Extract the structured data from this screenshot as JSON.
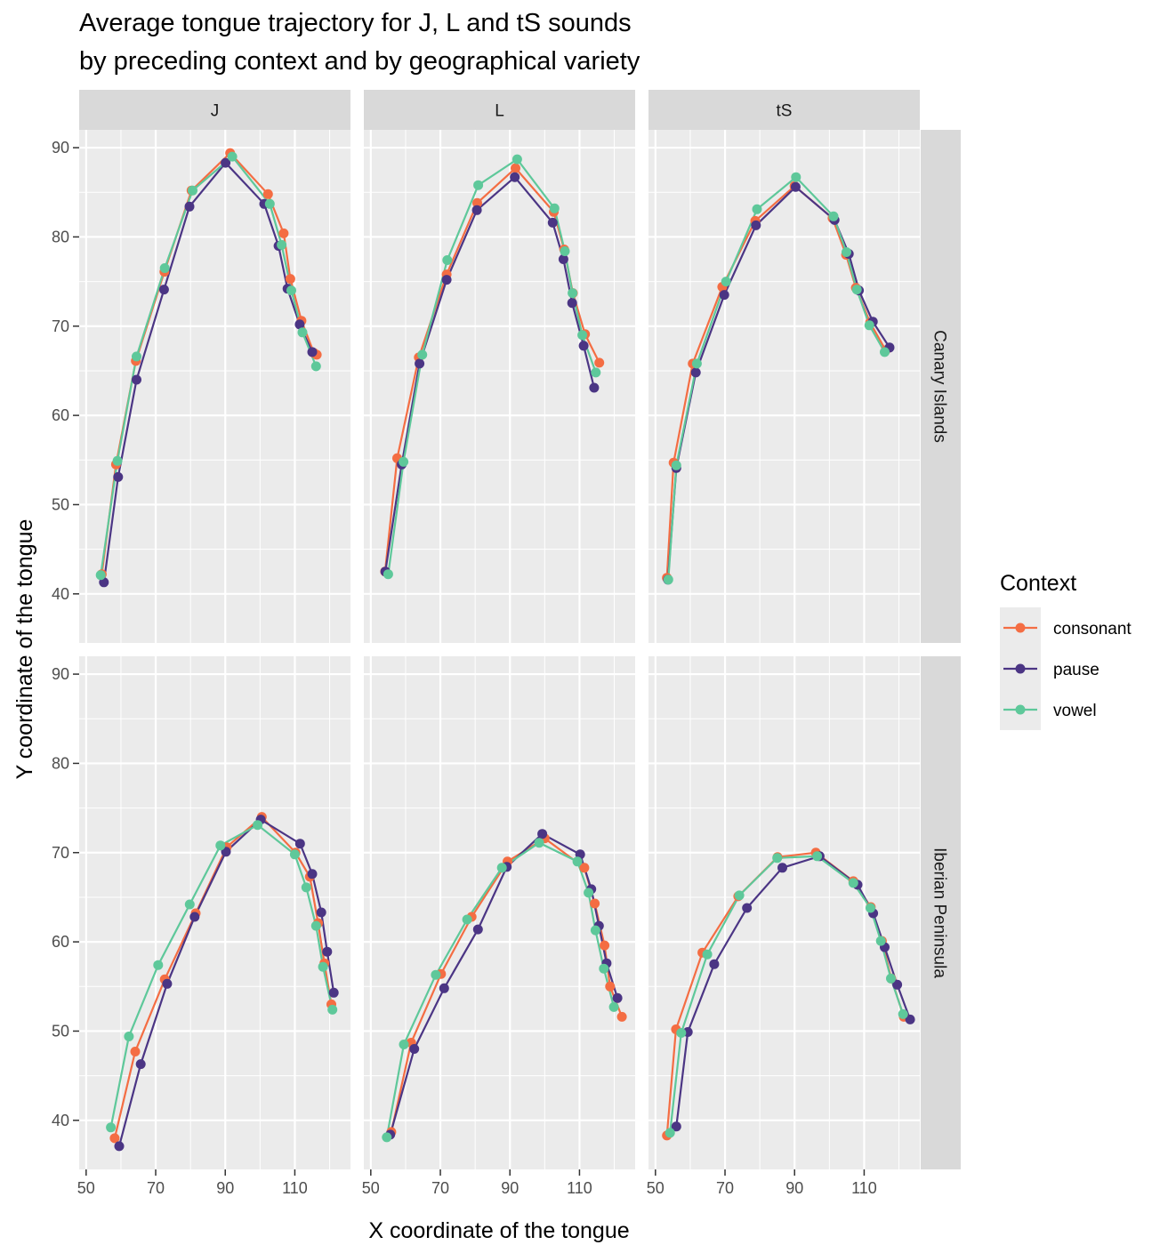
{
  "chart_data": {
    "type": "line",
    "title": "Average tongue trajectory for J, L and tS sounds",
    "subtitle": "by preceding context and by geographical variety",
    "xlabel": "X coordinate of the tongue",
    "ylabel": "Y coordinate of the tongue",
    "xlim": [
      48,
      126
    ],
    "ylim": [
      34.5,
      92
    ],
    "x_ticks": [
      50,
      70,
      90,
      110
    ],
    "y_ticks": [
      40,
      50,
      60,
      70,
      80,
      90
    ],
    "grid": true,
    "legend": {
      "title": "Context",
      "position": "right",
      "entries": [
        "consonant",
        "pause",
        "vowel"
      ]
    },
    "colors": {
      "consonant": "#f46d43",
      "pause": "#4b3584",
      "vowel": "#5ec89a"
    },
    "facet_columns": [
      "J",
      "L",
      "tS"
    ],
    "facet_rows": [
      "Canary Islands",
      "Iberian Peninsula"
    ],
    "facets": [
      {
        "column": "J",
        "row": "Canary Islands",
        "series": [
          {
            "name": "consonant",
            "points": [
              [
                54.5,
                42.2
              ],
              [
                58.6,
                54.5
              ],
              [
                64.3,
                66.1
              ],
              [
                72.5,
                76.1
              ],
              [
                80.3,
                85.2
              ],
              [
                91.4,
                89.4
              ],
              [
                102.3,
                84.8
              ],
              [
                106.8,
                80.4
              ],
              [
                108.7,
                75.3
              ],
              [
                111.9,
                70.6
              ],
              [
                115.5,
                67.0
              ],
              [
                116.3,
                66.8
              ]
            ]
          },
          {
            "name": "pause",
            "points": [
              [
                55.1,
                41.3
              ],
              [
                59.2,
                53.1
              ],
              [
                64.5,
                64.0
              ],
              [
                72.4,
                74.1
              ],
              [
                79.7,
                83.4
              ],
              [
                90.1,
                88.3
              ],
              [
                101.2,
                83.7
              ],
              [
                105.3,
                79.0
              ],
              [
                107.9,
                74.2
              ],
              [
                111.4,
                70.2
              ],
              [
                115.0,
                67.1
              ]
            ]
          },
          {
            "name": "vowel",
            "points": [
              [
                54.2,
                42.1
              ],
              [
                59.0,
                54.9
              ],
              [
                64.5,
                66.6
              ],
              [
                72.6,
                76.5
              ],
              [
                80.6,
                85.2
              ],
              [
                92.0,
                89.0
              ],
              [
                102.8,
                83.7
              ],
              [
                106.2,
                79.1
              ],
              [
                109.0,
                74.0
              ],
              [
                112.2,
                69.3
              ],
              [
                116.1,
                65.5
              ]
            ]
          }
        ]
      },
      {
        "column": "L",
        "row": "Canary Islands",
        "series": [
          {
            "name": "consonant",
            "points": [
              [
                54.1,
                42.5
              ],
              [
                57.6,
                55.2
              ],
              [
                63.8,
                66.5
              ],
              [
                71.8,
                75.8
              ],
              [
                80.6,
                83.8
              ],
              [
                91.6,
                87.7
              ],
              [
                102.6,
                82.8
              ],
              [
                105.6,
                78.6
              ],
              [
                108.1,
                73.7
              ],
              [
                111.6,
                69.1
              ],
              [
                115.7,
                65.9
              ]
            ]
          },
          {
            "name": "pause",
            "points": [
              [
                54.2,
                42.5
              ],
              [
                58.9,
                54.5
              ],
              [
                64.0,
                65.8
              ],
              [
                71.8,
                75.2
              ],
              [
                80.5,
                83.0
              ],
              [
                91.4,
                86.7
              ],
              [
                102.3,
                81.6
              ],
              [
                105.4,
                77.5
              ],
              [
                107.9,
                72.6
              ],
              [
                111.2,
                67.8
              ],
              [
                114.2,
                63.1
              ]
            ]
          },
          {
            "name": "vowel",
            "points": [
              [
                55.0,
                42.2
              ],
              [
                59.4,
                54.8
              ],
              [
                64.8,
                66.8
              ],
              [
                72.0,
                77.4
              ],
              [
                80.9,
                85.8
              ],
              [
                92.1,
                88.7
              ],
              [
                102.8,
                83.2
              ],
              [
                105.8,
                78.4
              ],
              [
                108.0,
                73.7
              ],
              [
                110.8,
                69.0
              ],
              [
                114.7,
                64.8
              ]
            ]
          }
        ]
      },
      {
        "column": "tS",
        "row": "Canary Islands",
        "series": [
          {
            "name": "consonant",
            "points": [
              [
                53.3,
                41.8
              ],
              [
                55.2,
                54.7
              ],
              [
                60.7,
                65.8
              ],
              [
                69.2,
                74.4
              ],
              [
                78.7,
                81.8
              ],
              [
                90.0,
                85.7
              ],
              [
                100.9,
                82.1
              ],
              [
                104.8,
                78.0
              ],
              [
                107.6,
                74.3
              ],
              [
                111.7,
                70.4
              ],
              [
                116.2,
                67.3
              ]
            ]
          },
          {
            "name": "pause",
            "points": [
              [
                53.6,
                41.6
              ],
              [
                56.0,
                54.1
              ],
              [
                61.6,
                64.8
              ],
              [
                69.8,
                73.5
              ],
              [
                78.9,
                81.3
              ],
              [
                90.3,
                85.6
              ],
              [
                101.5,
                81.9
              ],
              [
                105.6,
                78.1
              ],
              [
                108.5,
                74.0
              ],
              [
                112.5,
                70.5
              ],
              [
                117.3,
                67.6
              ]
            ]
          },
          {
            "name": "vowel",
            "points": [
              [
                53.7,
                41.6
              ],
              [
                56.0,
                54.4
              ],
              [
                61.9,
                65.8
              ],
              [
                70.3,
                75.0
              ],
              [
                79.2,
                83.1
              ],
              [
                90.4,
                86.7
              ],
              [
                101.2,
                82.3
              ],
              [
                104.9,
                78.3
              ],
              [
                107.9,
                74.1
              ],
              [
                111.5,
                70.1
              ],
              [
                115.9,
                67.1
              ]
            ]
          }
        ]
      },
      {
        "column": "J",
        "row": "Iberian Peninsula",
        "series": [
          {
            "name": "consonant",
            "points": [
              [
                58.2,
                38.0
              ],
              [
                64.1,
                47.7
              ],
              [
                72.6,
                55.8
              ],
              [
                81.5,
                63.2
              ],
              [
                90.4,
                70.6
              ],
              [
                100.5,
                74.0
              ],
              [
                110.2,
                70.0
              ],
              [
                114.3,
                67.3
              ],
              [
                116.7,
                62.1
              ],
              [
                118.5,
                57.6
              ],
              [
                120.5,
                53.0
              ]
            ]
          },
          {
            "name": "pause",
            "points": [
              [
                59.5,
                37.1
              ],
              [
                65.7,
                46.3
              ],
              [
                73.3,
                55.3
              ],
              [
                81.2,
                62.8
              ],
              [
                90.2,
                70.1
              ],
              [
                100.2,
                73.7
              ],
              [
                111.5,
                71.0
              ],
              [
                115.0,
                67.6
              ],
              [
                117.6,
                63.3
              ],
              [
                119.3,
                58.9
              ],
              [
                121.2,
                54.3
              ]
            ]
          },
          {
            "name": "vowel",
            "points": [
              [
                57.1,
                39.2
              ],
              [
                62.3,
                49.4
              ],
              [
                70.7,
                57.4
              ],
              [
                79.8,
                64.2
              ],
              [
                88.6,
                70.8
              ],
              [
                99.3,
                73.1
              ],
              [
                110.0,
                69.8
              ],
              [
                113.3,
                66.1
              ],
              [
                116.1,
                61.8
              ],
              [
                118.1,
                57.2
              ],
              [
                120.8,
                52.4
              ]
            ]
          }
        ]
      },
      {
        "column": "L",
        "row": "Iberian Peninsula",
        "series": [
          {
            "name": "consonant",
            "points": [
              [
                55.9,
                38.7
              ],
              [
                61.6,
                48.7
              ],
              [
                70.2,
                56.4
              ],
              [
                79.0,
                62.8
              ],
              [
                89.3,
                69.0
              ],
              [
                100.0,
                71.6
              ],
              [
                111.4,
                68.3
              ],
              [
                114.4,
                64.3
              ],
              [
                117.2,
                59.6
              ],
              [
                118.8,
                55.0
              ],
              [
                122.2,
                51.6
              ]
            ]
          },
          {
            "name": "pause",
            "points": [
              [
                55.6,
                38.4
              ],
              [
                62.5,
                48.0
              ],
              [
                71.1,
                54.8
              ],
              [
                80.8,
                61.4
              ],
              [
                89.1,
                68.4
              ],
              [
                99.3,
                72.1
              ],
              [
                110.2,
                69.8
              ],
              [
                113.4,
                65.9
              ],
              [
                115.6,
                61.8
              ],
              [
                117.8,
                57.6
              ],
              [
                120.9,
                53.7
              ]
            ]
          },
          {
            "name": "vowel",
            "points": [
              [
                54.6,
                38.1
              ],
              [
                59.5,
                48.5
              ],
              [
                68.7,
                56.3
              ],
              [
                77.7,
                62.5
              ],
              [
                87.7,
                68.3
              ],
              [
                98.4,
                71.1
              ],
              [
                109.4,
                69.0
              ],
              [
                112.6,
                65.5
              ],
              [
                114.6,
                61.3
              ],
              [
                117.0,
                57.0
              ],
              [
                119.9,
                52.7
              ]
            ]
          }
        ]
      },
      {
        "column": "tS",
        "row": "Iberian Peninsula",
        "series": [
          {
            "name": "consonant",
            "points": [
              [
                53.3,
                38.3
              ],
              [
                55.9,
                50.2
              ],
              [
                63.5,
                58.8
              ],
              [
                73.8,
                65.1
              ],
              [
                85.1,
                69.5
              ],
              [
                96.1,
                70.0
              ],
              [
                106.9,
                66.8
              ],
              [
                111.9,
                63.9
              ],
              [
                115.1,
                60.1
              ],
              [
                117.8,
                55.9
              ],
              [
                121.4,
                51.6
              ]
            ]
          },
          {
            "name": "pause",
            "points": [
              [
                56.0,
                39.3
              ],
              [
                59.3,
                49.9
              ],
              [
                66.9,
                57.5
              ],
              [
                76.3,
                63.8
              ],
              [
                86.5,
                68.3
              ],
              [
                97.2,
                69.6
              ],
              [
                108.1,
                66.4
              ],
              [
                112.6,
                63.2
              ],
              [
                115.9,
                59.4
              ],
              [
                119.5,
                55.2
              ],
              [
                123.2,
                51.3
              ]
            ]
          },
          {
            "name": "vowel",
            "points": [
              [
                54.2,
                38.6
              ],
              [
                57.4,
                49.8
              ],
              [
                64.9,
                58.6
              ],
              [
                74.1,
                65.2
              ],
              [
                85.0,
                69.4
              ],
              [
                96.5,
                69.6
              ],
              [
                106.9,
                66.6
              ],
              [
                111.8,
                63.8
              ],
              [
                114.8,
                60.1
              ],
              [
                117.7,
                55.9
              ],
              [
                121.2,
                51.9
              ]
            ]
          }
        ]
      }
    ]
  }
}
